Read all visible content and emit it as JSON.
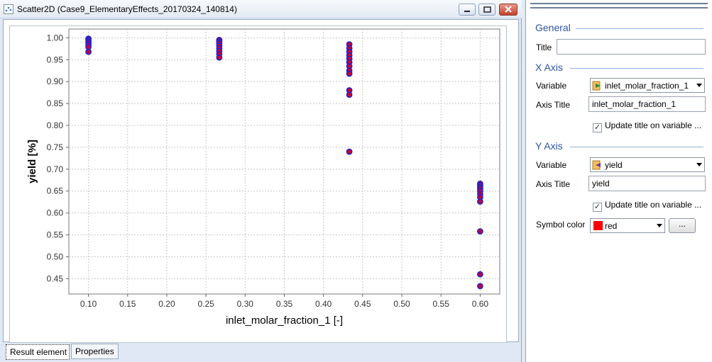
{
  "window": {
    "title": "Scatter2D  (Case9_ElementaryEffects_20170324_140814)"
  },
  "tabs": [
    {
      "label": "Result element"
    },
    {
      "label": "Properties"
    }
  ],
  "properties": {
    "general_heading": "General",
    "title_label": "Title",
    "title_value": "",
    "x_axis_heading": "X Axis",
    "x_variable_label": "Variable",
    "x_variable_value": "inlet_molar_fraction_1",
    "x_axis_title_label": "Axis Title",
    "x_axis_title_value": "inlet_molar_fraction_1",
    "x_update_title_label": "Update title on variable ...",
    "y_axis_heading": "Y Axis",
    "y_variable_label": "Variable",
    "y_variable_value": "yield",
    "y_axis_title_label": "Axis Title",
    "y_axis_title_value": "yield",
    "y_update_title_label": "Update title on variable ...",
    "symbol_color_label": "Symbol color",
    "symbol_color_value": "red",
    "symbol_color_hex": "#ff0000",
    "more_button_label": "..."
  },
  "chart_data": {
    "type": "scatter",
    "xlabel": "inlet_molar_fraction_1 [-]",
    "ylabel": "yield [%]",
    "xlim": [
      0.075,
      0.625
    ],
    "ylim": [
      0.415,
      1.02
    ],
    "xticks": [
      0.1,
      0.15,
      0.2,
      0.25,
      0.3,
      0.35,
      0.4,
      0.45,
      0.5,
      0.55,
      0.6
    ],
    "xtick_labels": [
      "0.10",
      "0.15",
      "0.20",
      "0.25",
      "0.30",
      "0.35",
      "0.40",
      "0.45",
      "0.50",
      "0.55",
      "0.60"
    ],
    "yticks": [
      0.45,
      0.5,
      0.55,
      0.6,
      0.65,
      0.7,
      0.75,
      0.8,
      0.85,
      0.9,
      0.95,
      1.0
    ],
    "ytick_labels": [
      "0.45",
      "0.50",
      "0.55",
      "0.60",
      "0.65",
      "0.70",
      "0.75",
      "0.80",
      "0.85",
      "0.90",
      "0.95",
      "1.00"
    ],
    "grid": true,
    "marker_fill": "#cc0033",
    "marker_edge": "#2222cc",
    "points": [
      {
        "x": 0.1,
        "y": 0.998
      },
      {
        "x": 0.1,
        "y": 0.995
      },
      {
        "x": 0.1,
        "y": 0.992
      },
      {
        "x": 0.1,
        "y": 0.988
      },
      {
        "x": 0.1,
        "y": 0.984
      },
      {
        "x": 0.1,
        "y": 0.979
      },
      {
        "x": 0.1,
        "y": 0.968
      },
      {
        "x": 0.267,
        "y": 0.995
      },
      {
        "x": 0.267,
        "y": 0.991
      },
      {
        "x": 0.267,
        "y": 0.987
      },
      {
        "x": 0.267,
        "y": 0.982
      },
      {
        "x": 0.267,
        "y": 0.976
      },
      {
        "x": 0.267,
        "y": 0.97
      },
      {
        "x": 0.267,
        "y": 0.963
      },
      {
        "x": 0.267,
        "y": 0.955
      },
      {
        "x": 0.433,
        "y": 0.985
      },
      {
        "x": 0.433,
        "y": 0.976
      },
      {
        "x": 0.433,
        "y": 0.968
      },
      {
        "x": 0.433,
        "y": 0.96
      },
      {
        "x": 0.433,
        "y": 0.952
      },
      {
        "x": 0.433,
        "y": 0.944
      },
      {
        "x": 0.433,
        "y": 0.935
      },
      {
        "x": 0.433,
        "y": 0.925
      },
      {
        "x": 0.433,
        "y": 0.918
      },
      {
        "x": 0.433,
        "y": 0.88
      },
      {
        "x": 0.433,
        "y": 0.87
      },
      {
        "x": 0.433,
        "y": 0.74
      },
      {
        "x": 0.6,
        "y": 0.667
      },
      {
        "x": 0.6,
        "y": 0.663
      },
      {
        "x": 0.6,
        "y": 0.659
      },
      {
        "x": 0.6,
        "y": 0.655
      },
      {
        "x": 0.6,
        "y": 0.65
      },
      {
        "x": 0.6,
        "y": 0.643
      },
      {
        "x": 0.6,
        "y": 0.636
      },
      {
        "x": 0.6,
        "y": 0.626
      },
      {
        "x": 0.6,
        "y": 0.558
      },
      {
        "x": 0.6,
        "y": 0.46
      },
      {
        "x": 0.6,
        "y": 0.433
      }
    ]
  }
}
